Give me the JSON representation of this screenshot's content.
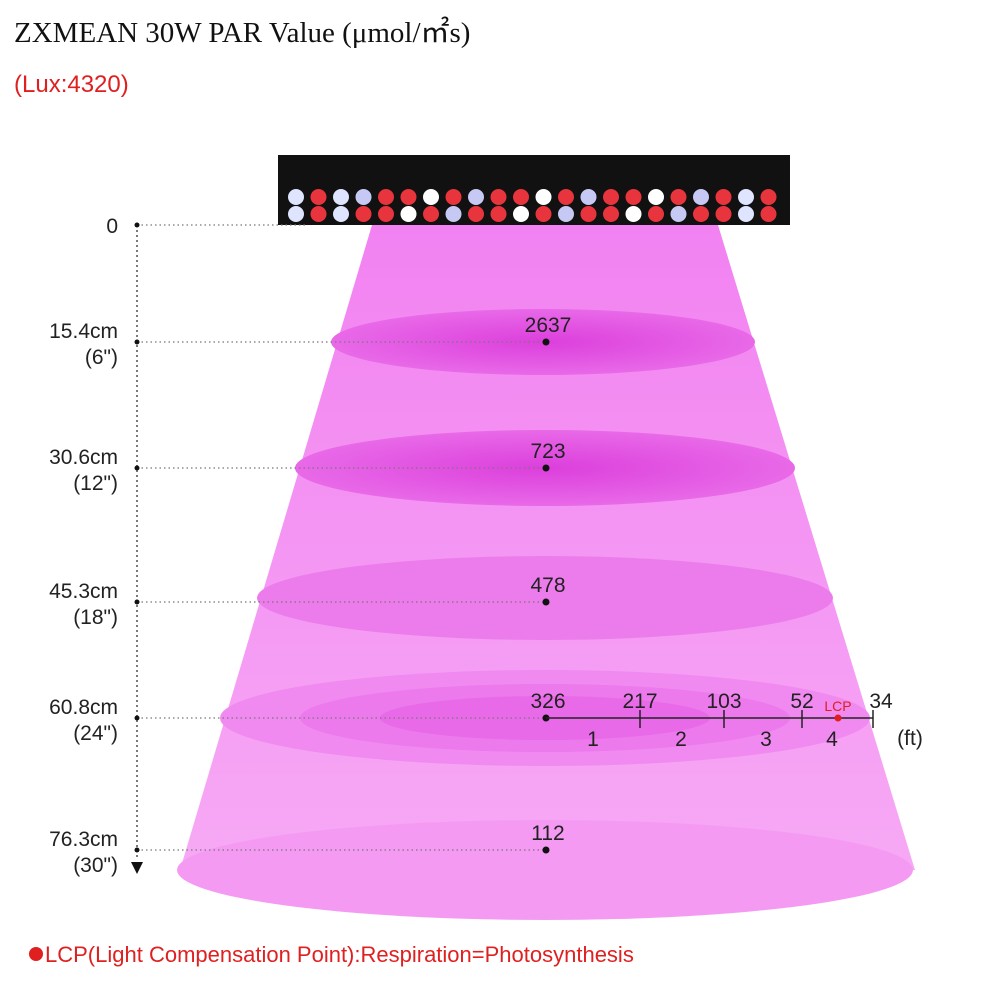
{
  "title": "ZXMEAN 30W PAR Value (μmol/㎡s)",
  "lux": "(Lux:4320)",
  "origin": "0",
  "levels": [
    {
      "cm": "15.4cm",
      "inch": "(6\")",
      "par": 2637
    },
    {
      "cm": "30.6cm",
      "inch": "(12\")",
      "par": 723
    },
    {
      "cm": "45.3cm",
      "inch": "(18\")",
      "par": 478
    },
    {
      "cm": "60.8cm",
      "inch": "(24\")",
      "par": 326
    },
    {
      "cm": "76.3cm",
      "inch": "(30\")",
      "par": 112
    }
  ],
  "spread": {
    "values": [
      217,
      103,
      52,
      34
    ],
    "feet": [
      "1",
      "2",
      "3",
      "4"
    ],
    "unit": "(ft)",
    "lcp": "LCP"
  },
  "footnote": "LCP(Light Compensation Point):Respiration=Photosynthesis"
}
